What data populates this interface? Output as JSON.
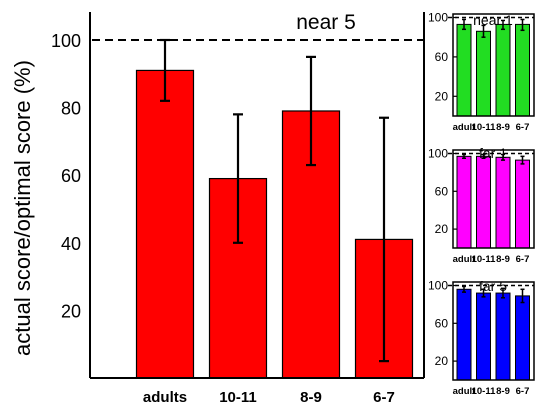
{
  "figure": {
    "ylabel": "actual score/optimal score (%)"
  },
  "chart_data": [
    {
      "type": "bar",
      "title": "near 5",
      "ylabel": "actual score/optimal score (%)",
      "categories": [
        "adults",
        "10-11",
        "8-9",
        "6-7"
      ],
      "values": [
        91,
        59,
        79,
        41
      ],
      "error_low": [
        82,
        40,
        63,
        5
      ],
      "error_high": [
        100,
        78,
        95,
        77
      ],
      "reference_line": 100,
      "yticks": [
        20,
        40,
        60,
        80,
        100
      ],
      "ylim": [
        0,
        110
      ],
      "bar_color": "#ff0000",
      "grid": false
    },
    {
      "type": "bar",
      "title": "near 1",
      "categories": [
        "adult",
        "10-11",
        "8-9",
        "6-7"
      ],
      "values": [
        93,
        86,
        93,
        93
      ],
      "error_low": [
        88,
        80,
        88,
        87
      ],
      "error_high": [
        98,
        92,
        97,
        98
      ],
      "reference_line": 100,
      "yticks": [
        20,
        60,
        100
      ],
      "ylim": [
        0,
        110
      ],
      "bar_color": "#22dd22",
      "grid": false
    },
    {
      "type": "bar",
      "title": "far 1",
      "categories": [
        "adult",
        "10-11",
        "8-9",
        "6-7"
      ],
      "values": [
        97,
        97,
        96,
        93
      ],
      "error_low": [
        95,
        95,
        93,
        89
      ],
      "error_high": [
        99,
        99,
        99,
        97
      ],
      "reference_line": 100,
      "yticks": [
        20,
        60,
        100
      ],
      "ylim": [
        0,
        110
      ],
      "bar_color": "#ff00ff",
      "grid": false
    },
    {
      "type": "bar",
      "title": "far 5",
      "categories": [
        "adult",
        "10-11",
        "8-9",
        "6-7"
      ],
      "values": [
        96,
        92,
        92,
        89
      ],
      "error_low": [
        93,
        88,
        87,
        82
      ],
      "error_high": [
        99,
        96,
        97,
        96
      ],
      "reference_line": 100,
      "yticks": [
        20,
        60,
        100
      ],
      "ylim": [
        0,
        110
      ],
      "bar_color": "#0000ff",
      "grid": false
    }
  ]
}
